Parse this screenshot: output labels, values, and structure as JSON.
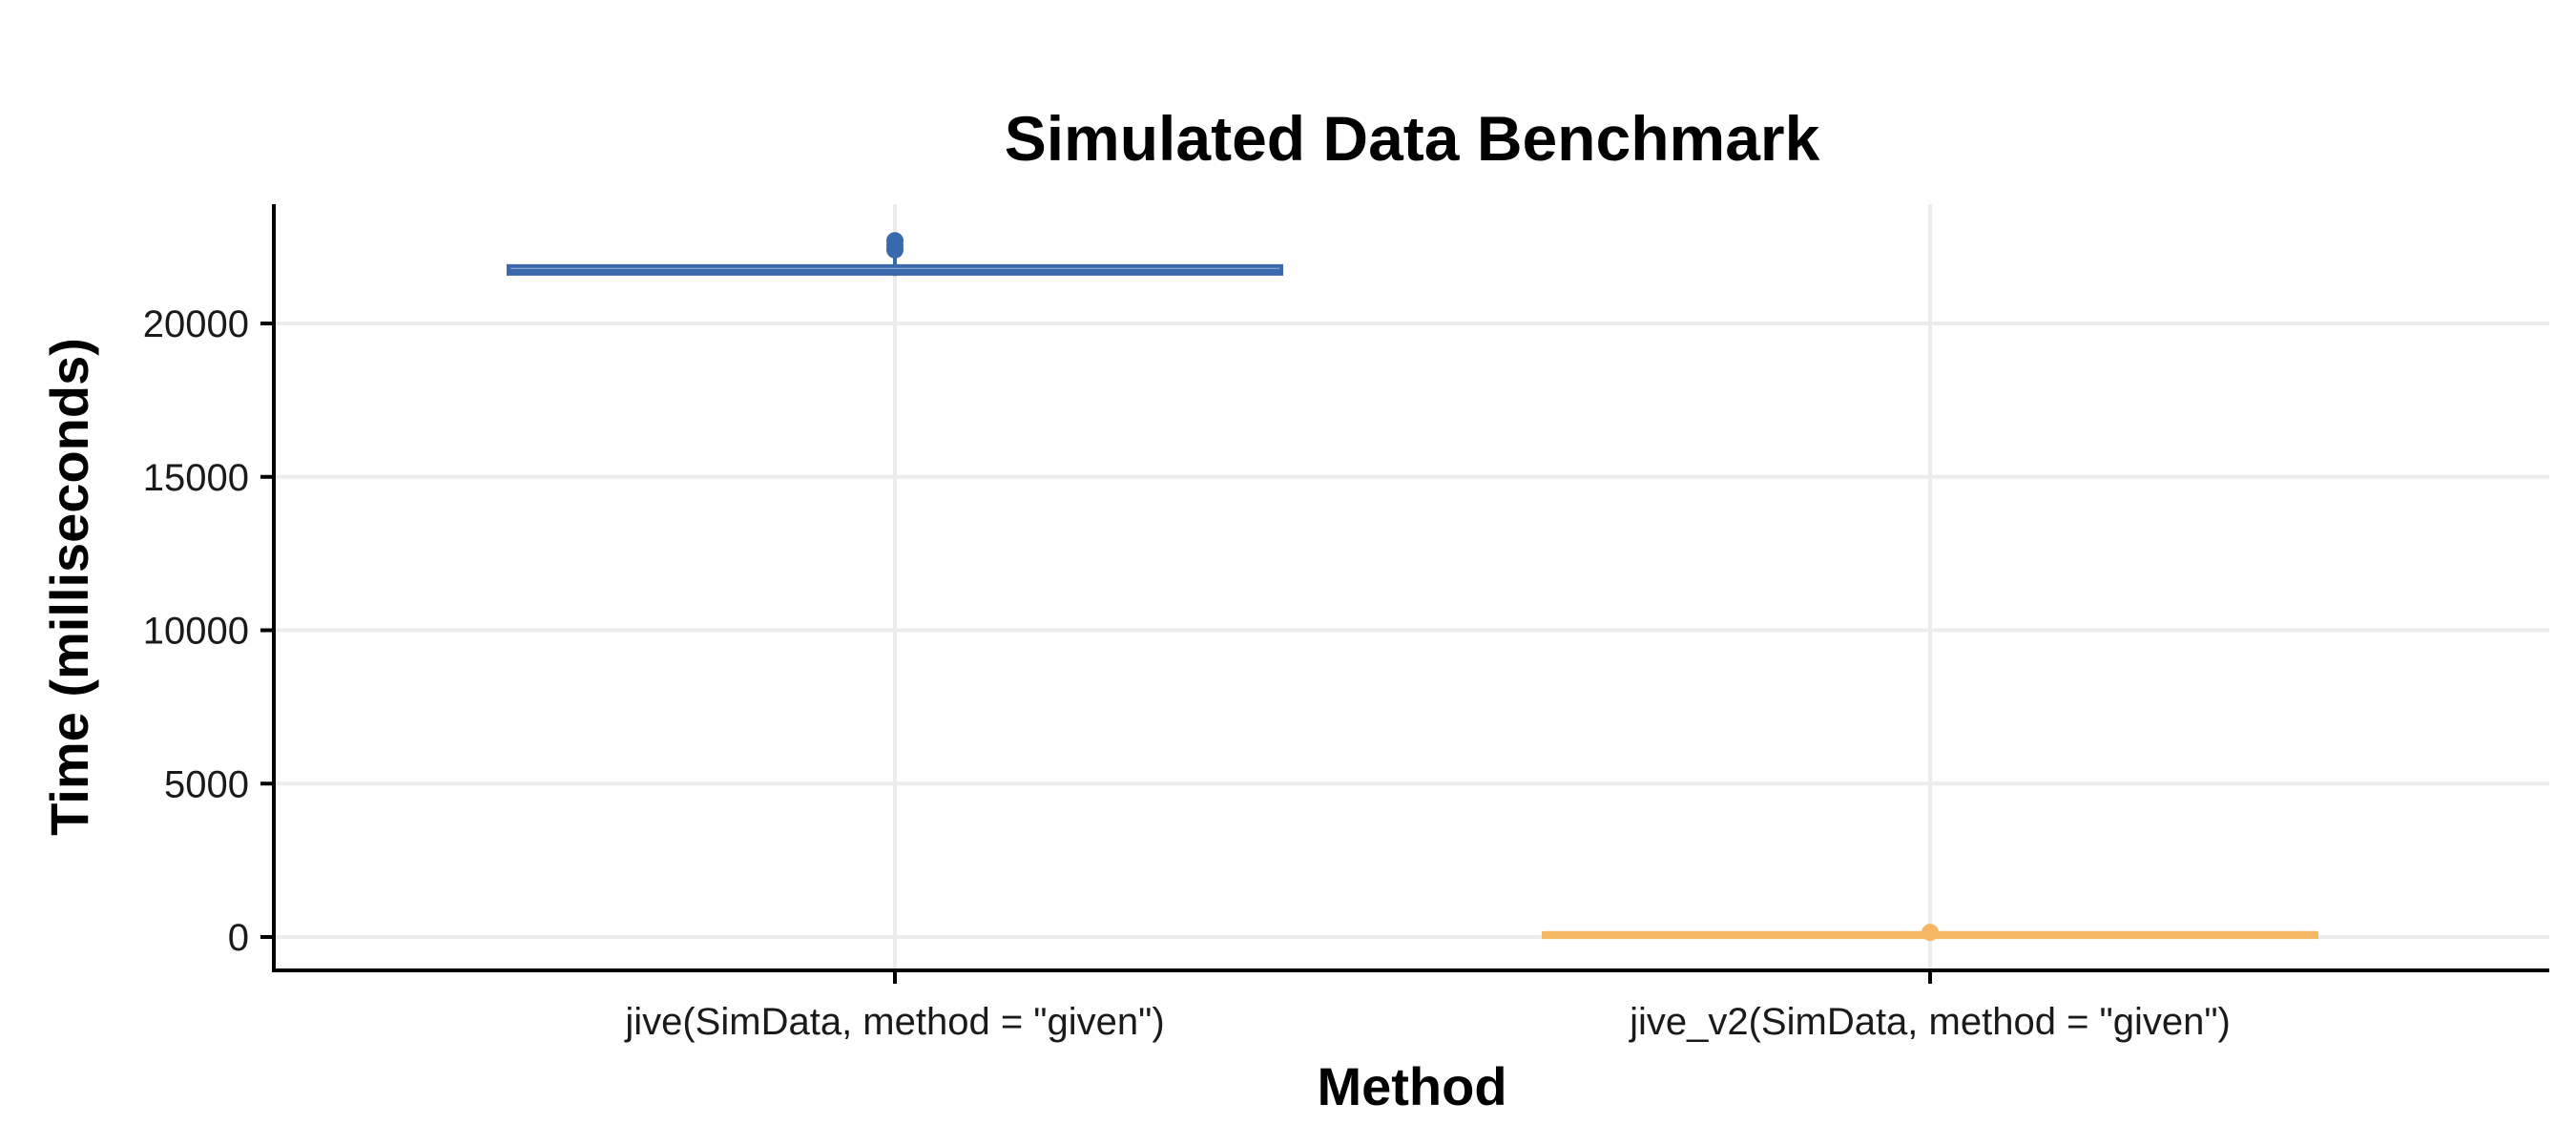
{
  "chart_data": {
    "type": "box",
    "title": "Simulated Data Benchmark",
    "xlabel": "Method",
    "ylabel": "Time (milliseconds)",
    "categories": [
      "jive(SimData, method = \"given\")",
      "jive_v2(SimData, method = \"given\")"
    ],
    "ylim": [
      -1000,
      24000
    ],
    "yticks": [
      0,
      5000,
      10000,
      15000,
      20000
    ],
    "grid": true,
    "legend": "none",
    "series": [
      {
        "category": "jive(SimData, method = \"given\")",
        "color": "#3a68ad",
        "min": 21550,
        "q1": 21620,
        "median": 21700,
        "q3": 21870,
        "max": 22150,
        "outliers": [
          22400,
          22550,
          22700
        ]
      },
      {
        "category": "jive_v2(SimData, method = \"given\")",
        "color": "#f5b763",
        "min": 60,
        "q1": 80,
        "median": 100,
        "q3": 120,
        "max": 140,
        "outliers": [
          150
        ]
      }
    ]
  }
}
